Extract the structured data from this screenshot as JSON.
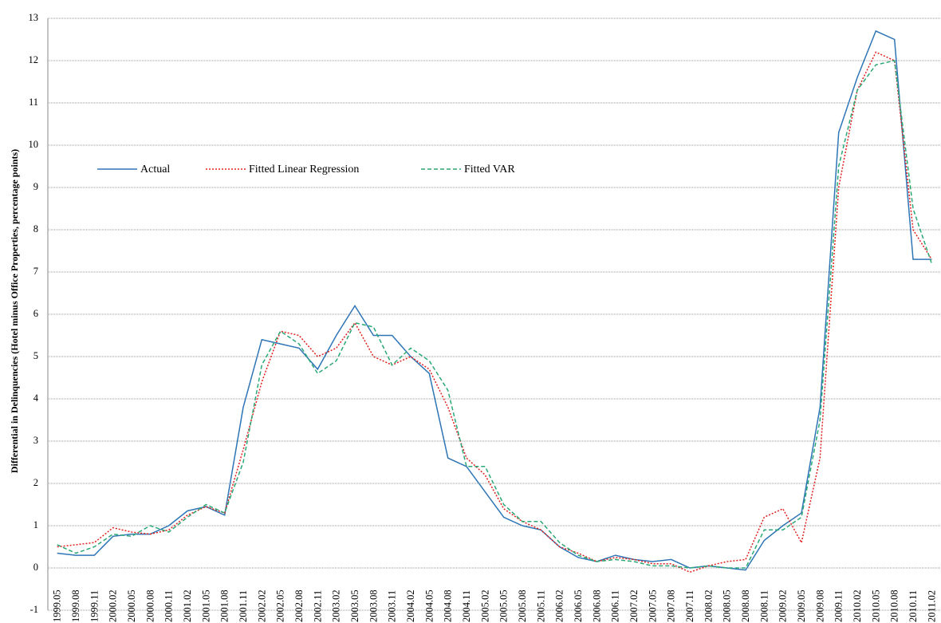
{
  "chart_data": {
    "type": "line",
    "y_label": "Differential in Delinquencies  (Hotel minus Office Properties, percentage points)",
    "categories": [
      "1999.05",
      "1999.08",
      "1999.11",
      "2000.02",
      "2000.05",
      "2000.08",
      "2000.11",
      "2001.02",
      "2001.05",
      "2001.08",
      "2001.11",
      "2002.02",
      "2002.05",
      "2002.08",
      "2002.11",
      "2003.02",
      "2003.05",
      "2003.08",
      "2003.11",
      "2004.02",
      "2004.05",
      "2004.08",
      "2004.11",
      "2005.02",
      "2005.05",
      "2005.08",
      "2005.11",
      "2006.02",
      "2006.05",
      "2006.08",
      "2006.11",
      "2007.02",
      "2007.05",
      "2007.08",
      "2007.11",
      "2008.02",
      "2008.05",
      "2008.08",
      "2008.11",
      "2009.02",
      "2009.05",
      "2009.08",
      "2009.11",
      "2010.02",
      "2010.05",
      "2010.08",
      "2010.11",
      "2011.02"
    ],
    "series": [
      {
        "name": "Actual",
        "color": "#2e75b6",
        "dash": "solid",
        "values": [
          0.35,
          0.3,
          0.3,
          0.75,
          0.8,
          0.8,
          1.0,
          1.35,
          1.45,
          1.25,
          3.8,
          5.4,
          5.3,
          5.2,
          4.7,
          5.5,
          6.2,
          5.5,
          5.5,
          5.0,
          4.6,
          2.6,
          2.4,
          1.8,
          1.2,
          1.0,
          0.9,
          0.5,
          0.25,
          0.15,
          0.3,
          0.2,
          0.15,
          0.2,
          0.0,
          0.05,
          0.0,
          -0.05,
          0.65,
          1.0,
          1.3,
          3.8,
          10.3,
          11.6,
          12.7,
          12.5,
          7.3,
          7.3
        ]
      },
      {
        "name": "Fitted Linear Regression",
        "color": "#e0201e",
        "dash": "dotted",
        "values": [
          0.5,
          0.55,
          0.6,
          0.95,
          0.85,
          0.8,
          0.9,
          1.25,
          1.45,
          1.3,
          2.8,
          4.4,
          5.6,
          5.5,
          5.0,
          5.2,
          5.8,
          5.0,
          4.8,
          5.0,
          4.7,
          3.8,
          2.6,
          2.2,
          1.4,
          1.1,
          0.9,
          0.5,
          0.35,
          0.15,
          0.25,
          0.2,
          0.1,
          0.1,
          -0.1,
          0.05,
          0.15,
          0.2,
          1.2,
          1.4,
          0.6,
          2.6,
          9.0,
          11.3,
          12.2,
          12.0,
          8.0,
          7.3
        ]
      },
      {
        "name": "Fitted VAR",
        "color": "#2aa876",
        "dash": "dashed",
        "values": [
          0.55,
          0.35,
          0.5,
          0.8,
          0.75,
          1.0,
          0.85,
          1.2,
          1.5,
          1.3,
          2.5,
          4.8,
          5.6,
          5.3,
          4.6,
          4.9,
          5.8,
          5.7,
          4.8,
          5.2,
          4.9,
          4.2,
          2.4,
          2.4,
          1.5,
          1.1,
          1.1,
          0.6,
          0.3,
          0.15,
          0.2,
          0.15,
          0.05,
          0.05,
          0.0,
          0.05,
          0.0,
          0.0,
          0.9,
          0.9,
          1.2,
          3.5,
          9.5,
          11.3,
          11.9,
          12.0,
          8.5,
          7.2
        ]
      }
    ],
    "ylim": [
      -1,
      13
    ],
    "yticks": [
      -1,
      0,
      1,
      2,
      3,
      4,
      5,
      6,
      7,
      8,
      9,
      10,
      11,
      12,
      13
    ],
    "grid": true
  }
}
